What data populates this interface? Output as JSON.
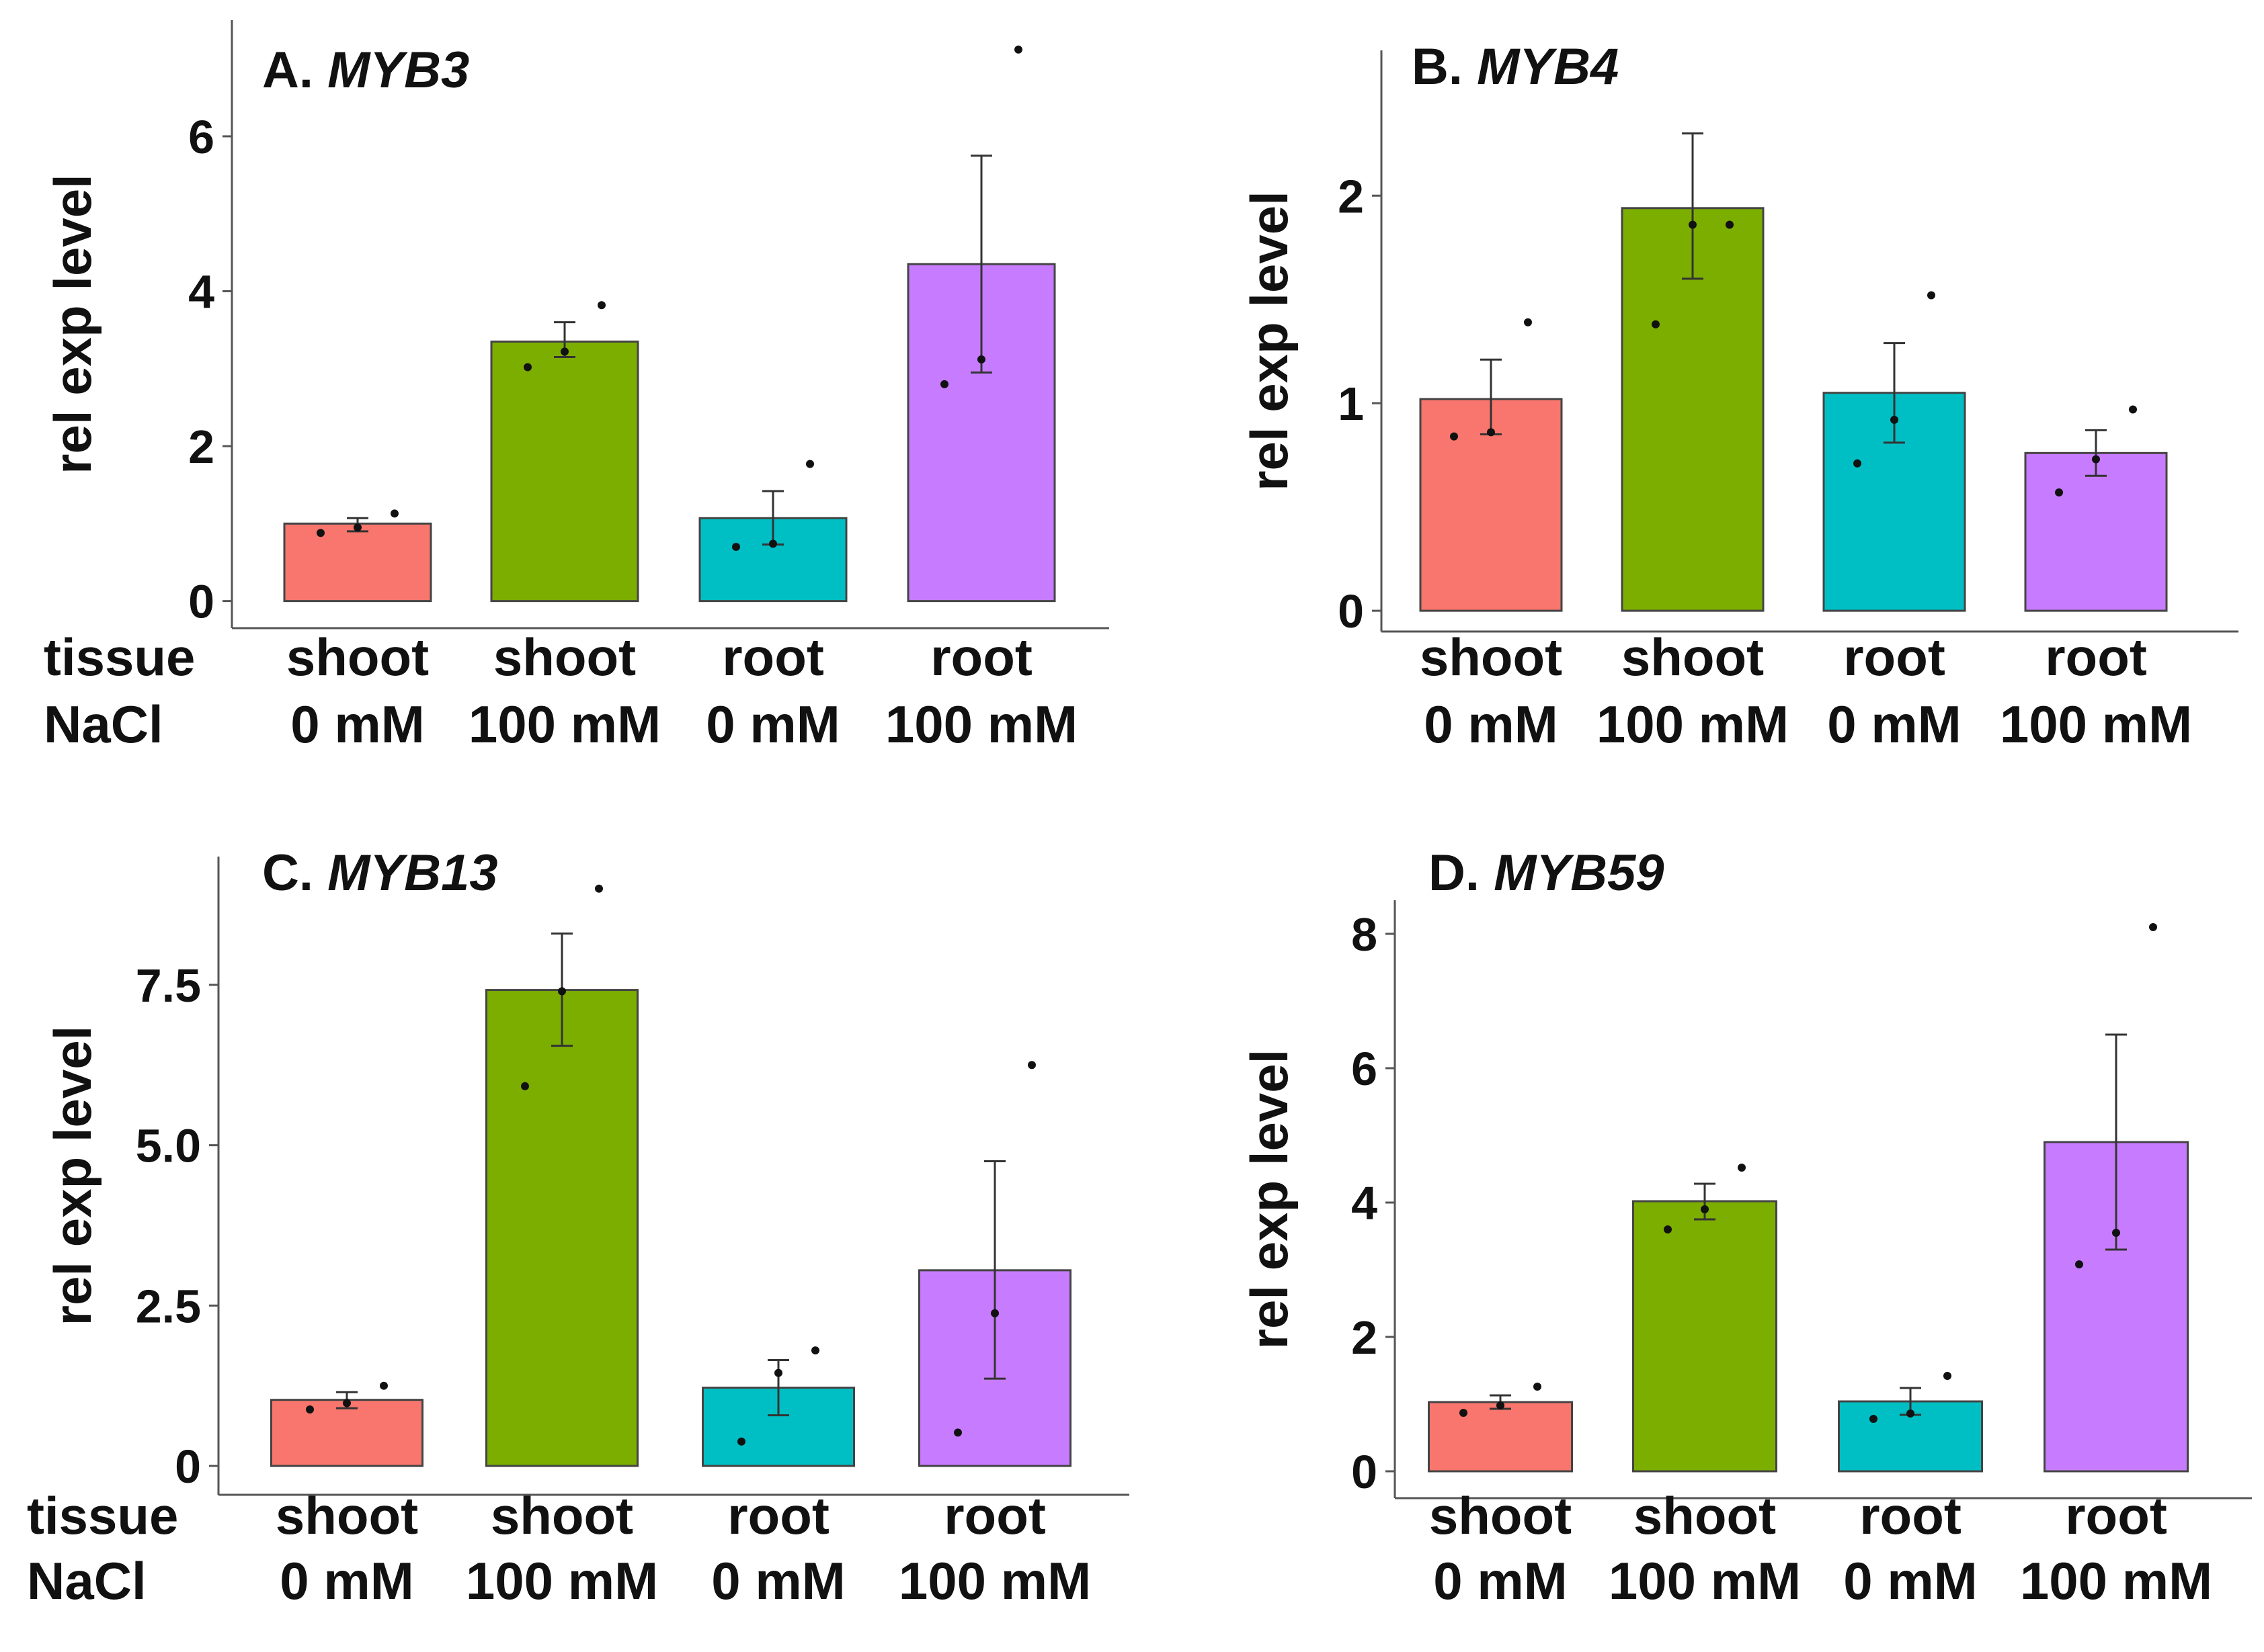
{
  "chart_data": [
    {
      "type": "bar",
      "title_prefix": "A. ",
      "gene": "MYB3",
      "ylabel": "rel exp level",
      "row_labels": [
        "tissue",
        "NaCl"
      ],
      "categories": [
        "shoot 0 mM",
        "shoot 100 mM",
        "root 0 mM",
        "root 100 mM"
      ],
      "tissue": [
        "shoot",
        "shoot",
        "root",
        "root"
      ],
      "nacl": [
        "0 mM",
        "100 mM",
        "0 mM",
        "100 mM"
      ],
      "colors": [
        "#F8766D",
        "#7CAE00",
        "#00BFC4",
        "#C77CFF"
      ],
      "values": [
        1.0,
        3.35,
        1.07,
        4.35
      ],
      "err_low": [
        0.9,
        3.15,
        0.73,
        2.95
      ],
      "err_high": [
        1.07,
        3.6,
        1.42,
        5.75
      ],
      "points": [
        [
          0.88,
          0.95,
          1.13
        ],
        [
          3.02,
          3.22,
          3.82
        ],
        [
          0.7,
          0.74,
          1.77
        ],
        [
          2.8,
          3.12,
          7.12
        ]
      ],
      "ylim": [
        -0.35,
        7.5
      ],
      "yticks": [
        0,
        2,
        4,
        6
      ],
      "ytick_labels": [
        "0",
        "2",
        "4",
        "6"
      ]
    },
    {
      "type": "bar",
      "title_prefix": "B. ",
      "gene": "MYB4",
      "ylabel": "rel exp level",
      "row_labels": [],
      "categories": [
        "shoot 0 mM",
        "shoot 100 mM",
        "root 0 mM",
        "root 100 mM"
      ],
      "tissue": [
        "shoot",
        "shoot",
        "root",
        "root"
      ],
      "nacl": [
        "0 mM",
        "100 mM",
        "0 mM",
        "100 mM"
      ],
      "colors": [
        "#F8766D",
        "#7CAE00",
        "#00BFC4",
        "#C77CFF"
      ],
      "values": [
        1.02,
        1.94,
        1.05,
        0.76
      ],
      "err_low": [
        0.85,
        1.6,
        0.81,
        0.65
      ],
      "err_high": [
        1.21,
        2.3,
        1.29,
        0.87
      ],
      "points": [
        [
          0.84,
          0.86,
          1.39
        ],
        [
          1.38,
          1.86,
          1.86
        ],
        [
          0.71,
          0.92,
          1.52
        ],
        [
          0.57,
          0.73,
          0.97
        ]
      ],
      "ylim": [
        -0.1,
        2.7
      ],
      "yticks": [
        0,
        1,
        2
      ],
      "ytick_labels": [
        "0",
        "1",
        "2"
      ]
    },
    {
      "type": "bar",
      "title_prefix": "C. ",
      "gene": "MYB13",
      "ylabel": "rel exp level",
      "row_labels": [
        "tissue",
        "NaCl"
      ],
      "categories": [
        "shoot 0 mM",
        "shoot 100 mM",
        "root 0 mM",
        "root 100 mM"
      ],
      "tissue": [
        "shoot",
        "shoot",
        "root",
        "root"
      ],
      "nacl": [
        "0 mM",
        "100 mM",
        "0 mM",
        "100 mM"
      ],
      "colors": [
        "#F8766D",
        "#7CAE00",
        "#00BFC4",
        "#C77CFF"
      ],
      "values": [
        1.03,
        7.42,
        1.22,
        3.05
      ],
      "err_low": [
        0.9,
        6.55,
        0.79,
        1.36
      ],
      "err_high": [
        1.15,
        8.3,
        1.65,
        4.75
      ],
      "points": [
        [
          0.88,
          0.98,
          1.25
        ],
        [
          5.92,
          7.4,
          9.0
        ],
        [
          0.38,
          1.45,
          1.8
        ],
        [
          0.52,
          2.38,
          6.25
        ]
      ],
      "ylim": [
        -0.45,
        9.5
      ],
      "yticks": [
        0,
        2.5,
        5.0,
        7.5
      ],
      "ytick_labels": [
        "0",
        "2.5",
        "5.0",
        "7.5"
      ]
    },
    {
      "type": "bar",
      "title_prefix": "D. ",
      "gene": "MYB59",
      "ylabel": "rel exp level",
      "row_labels": [],
      "categories": [
        "shoot 0 mM",
        "shoot 100 mM",
        "root 0 mM",
        "root 100 mM"
      ],
      "tissue": [
        "shoot",
        "shoot",
        "root",
        "root"
      ],
      "nacl": [
        "0 mM",
        "100 mM",
        "0 mM",
        "100 mM"
      ],
      "colors": [
        "#F8766D",
        "#7CAE00",
        "#00BFC4",
        "#C77CFF"
      ],
      "values": [
        1.03,
        4.02,
        1.04,
        4.9
      ],
      "err_low": [
        0.93,
        3.75,
        0.84,
        3.3
      ],
      "err_high": [
        1.13,
        4.28,
        1.24,
        6.5
      ],
      "points": [
        [
          0.87,
          0.98,
          1.26
        ],
        [
          3.6,
          3.9,
          4.52
        ],
        [
          0.78,
          0.86,
          1.42
        ],
        [
          3.08,
          3.55,
          8.1
        ]
      ],
      "ylim": [
        -0.4,
        8.5
      ],
      "yticks": [
        0,
        2,
        4,
        6,
        8
      ],
      "ytick_labels": [
        "0",
        "2",
        "4",
        "6",
        "8"
      ]
    }
  ]
}
